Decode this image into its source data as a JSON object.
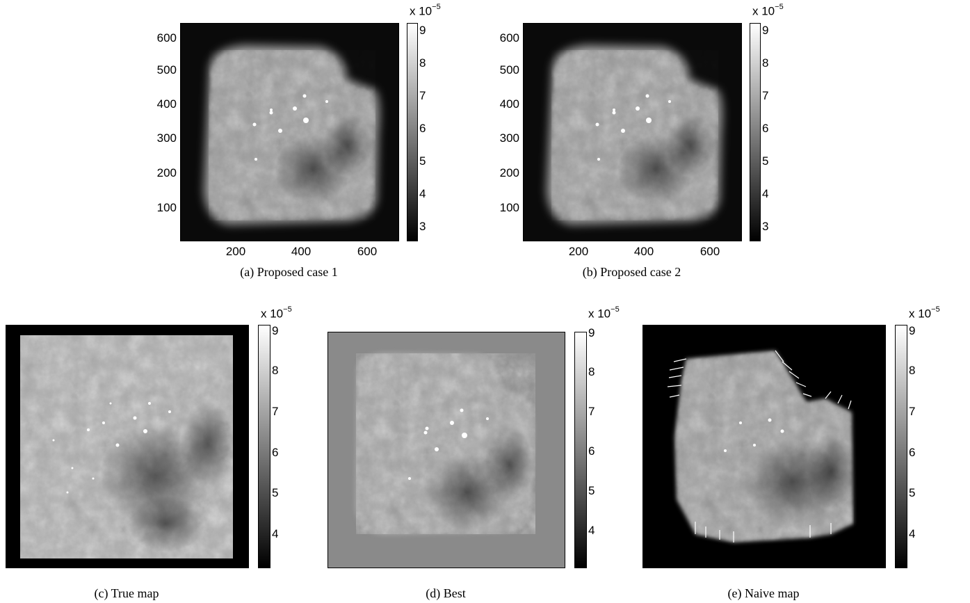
{
  "panels": {
    "a": {
      "caption": "(a) Proposed case 1",
      "yticks": [
        "600",
        "500",
        "400",
        "300",
        "200",
        "100"
      ],
      "xticks": [
        "200",
        "400",
        "600"
      ],
      "colorbar": {
        "exponent_prefix": "x 10",
        "exponent_power": "−5",
        "ticks": [
          "9",
          "8",
          "7",
          "6",
          "5",
          "4",
          "3"
        ]
      }
    },
    "b": {
      "caption": "(b) Proposed case 2",
      "yticks": [
        "600",
        "500",
        "400",
        "300",
        "200",
        "100"
      ],
      "xticks": [
        "200",
        "400",
        "600"
      ],
      "colorbar": {
        "exponent_prefix": "x 10",
        "exponent_power": "−5",
        "ticks": [
          "9",
          "8",
          "7",
          "6",
          "5",
          "4",
          "3"
        ]
      }
    },
    "c": {
      "caption": "(c) True map",
      "colorbar": {
        "exponent_prefix": "x 10",
        "exponent_power": "−5",
        "ticks": [
          "9",
          "8",
          "7",
          "6",
          "5",
          "4"
        ]
      }
    },
    "d": {
      "caption": "(d) Best",
      "colorbar": {
        "exponent_prefix": "x 10",
        "exponent_power": "−5",
        "ticks": [
          "9",
          "8",
          "7",
          "6",
          "5",
          "4"
        ]
      }
    },
    "e": {
      "caption": "(e) Naive map",
      "colorbar": {
        "exponent_prefix": "x 10",
        "exponent_power": "−5",
        "ticks": [
          "9",
          "8",
          "7",
          "6",
          "5",
          "4"
        ]
      }
    }
  },
  "colormap": {
    "low": "#000000",
    "high": "#ffffff"
  }
}
